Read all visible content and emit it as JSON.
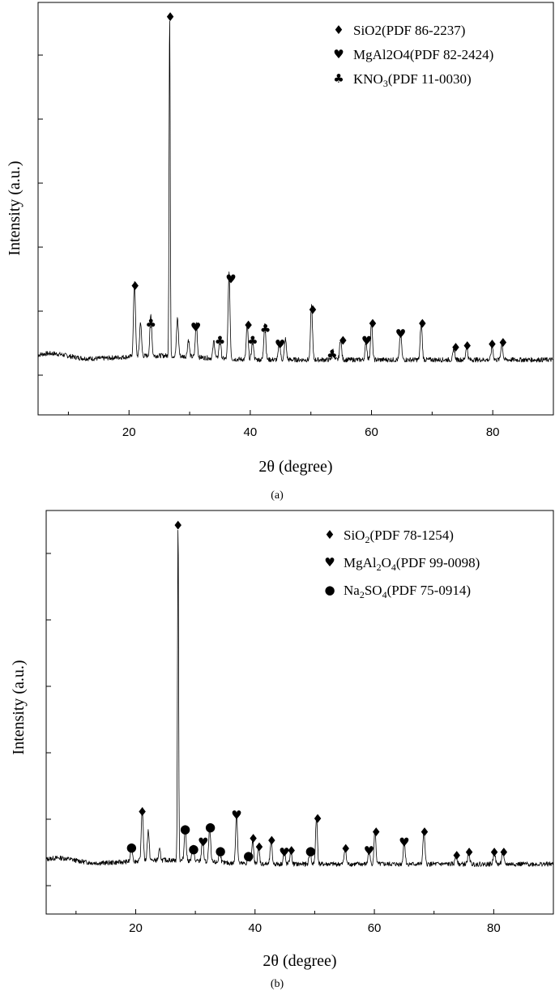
{
  "chart_data": [
    {
      "type": "line",
      "panel": "a",
      "xlabel": "2θ (degree)",
      "ylabel": "Intensity (a.u.)",
      "xlim": [
        5,
        90
      ],
      "x_ticks": [
        20,
        40,
        60,
        80
      ],
      "y_ticks_labeled": false,
      "legend_position": "top-right",
      "legend": [
        {
          "symbol": "diamond",
          "text": "SiO2(PDF 86-2237)"
        },
        {
          "symbol": "heart",
          "text": "MgAl2O4(PDF 82-2424)"
        },
        {
          "symbol": "club",
          "text": "KNO",
          "sub": "3",
          "after": "(PDF 11-0030)"
        }
      ],
      "baseline": 0.045,
      "peaks": [
        {
          "x": 20.9,
          "y": 0.22,
          "phase": "diamond"
        },
        {
          "x": 21.9,
          "y": 0.1
        },
        {
          "x": 23.6,
          "y": 0.12,
          "phase": "club"
        },
        {
          "x": 26.7,
          "y": 1.0,
          "phase": "diamond"
        },
        {
          "x": 28.0,
          "y": 0.11
        },
        {
          "x": 29.8,
          "y": 0.05
        },
        {
          "x": 31.1,
          "y": 0.1,
          "phase": "heart"
        },
        {
          "x": 34.0,
          "y": 0.05
        },
        {
          "x": 35.0,
          "y": 0.06,
          "phase": "club"
        },
        {
          "x": 36.5,
          "y": 0.25,
          "phase": "heart"
        },
        {
          "x": 39.5,
          "y": 0.1,
          "phase": "diamond"
        },
        {
          "x": 40.4,
          "y": 0.06,
          "phase": "club"
        },
        {
          "x": 42.4,
          "y": 0.11,
          "phase": "club"
        },
        {
          "x": 44.8,
          "y": 0.05,
          "phase": "heart"
        },
        {
          "x": 45.8,
          "y": 0.06
        },
        {
          "x": 50.1,
          "y": 0.16,
          "phase": "diamond"
        },
        {
          "x": 53.6,
          "y": 0.03,
          "phase": "club"
        },
        {
          "x": 54.9,
          "y": 0.06,
          "phase": "diamond"
        },
        {
          "x": 59.1,
          "y": 0.05,
          "phase": "heart"
        },
        {
          "x": 60.0,
          "y": 0.11,
          "phase": "diamond"
        },
        {
          "x": 64.8,
          "y": 0.08,
          "phase": "heart"
        },
        {
          "x": 68.2,
          "y": 0.11,
          "phase": "diamond"
        },
        {
          "x": 73.6,
          "y": 0.03,
          "phase": "diamond"
        },
        {
          "x": 75.7,
          "y": 0.04,
          "phase": "diamond"
        },
        {
          "x": 79.9,
          "y": 0.04,
          "phase": "diamond"
        },
        {
          "x": 81.5,
          "y": 0.05,
          "phase": "diamond"
        }
      ],
      "markers": [
        {
          "x": 21.0,
          "y": 0.26,
          "phase": "diamond"
        },
        {
          "x": 23.6,
          "y": 0.15,
          "phase": "club"
        },
        {
          "x": 26.8,
          "y": 1.045,
          "phase": "diamond"
        },
        {
          "x": 31.0,
          "y": 0.14,
          "phase": "heart"
        },
        {
          "x": 35.0,
          "y": 0.1,
          "phase": "club"
        },
        {
          "x": 36.8,
          "y": 0.28,
          "phase": "heart"
        },
        {
          "x": 39.7,
          "y": 0.145,
          "phase": "diamond"
        },
        {
          "x": 40.4,
          "y": 0.1,
          "phase": "club"
        },
        {
          "x": 42.5,
          "y": 0.135,
          "phase": "club"
        },
        {
          "x": 44.9,
          "y": 0.09,
          "phase": "heart"
        },
        {
          "x": 50.3,
          "y": 0.19,
          "phase": "diamond"
        },
        {
          "x": 53.5,
          "y": 0.06,
          "phase": "club"
        },
        {
          "x": 55.3,
          "y": 0.1,
          "phase": "diamond"
        },
        {
          "x": 59.2,
          "y": 0.1,
          "phase": "heart"
        },
        {
          "x": 60.2,
          "y": 0.15,
          "phase": "diamond"
        },
        {
          "x": 64.8,
          "y": 0.12,
          "phase": "heart"
        },
        {
          "x": 68.4,
          "y": 0.15,
          "phase": "diamond"
        },
        {
          "x": 73.9,
          "y": 0.08,
          "phase": "diamond"
        },
        {
          "x": 75.8,
          "y": 0.085,
          "phase": "diamond"
        },
        {
          "x": 79.9,
          "y": 0.09,
          "phase": "diamond"
        },
        {
          "x": 81.7,
          "y": 0.095,
          "phase": "diamond"
        }
      ],
      "panel_label": "(a)"
    },
    {
      "type": "line",
      "panel": "b",
      "xlabel": "2θ (degree)",
      "ylabel": "Intensity (a.u.)",
      "xlim": [
        5,
        90
      ],
      "x_ticks": [
        20,
        40,
        60,
        80
      ],
      "y_ticks_labeled": false,
      "legend_position": "top-right",
      "legend": [
        {
          "symbol": "diamond",
          "text": "SiO",
          "sub": "2",
          "after": "(PDF 78-1254)"
        },
        {
          "symbol": "heart",
          "text": "MgAl",
          "sub": "2",
          "text2": "O",
          "sub2": "4",
          "after": "(PDF 99-0098)"
        },
        {
          "symbol": "dot",
          "text": "Na",
          "sub": "2",
          "text2": "SO",
          "sub2": "4",
          "after": "(PDF 75-0914)"
        }
      ],
      "baseline": 0.035,
      "peaks": [
        {
          "x": 19.3,
          "y": 0.05,
          "phase": "dot"
        },
        {
          "x": 21.1,
          "y": 0.16,
          "phase": "diamond"
        },
        {
          "x": 22.1,
          "y": 0.09
        },
        {
          "x": 24.0,
          "y": 0.03
        },
        {
          "x": 27.1,
          "y": 1.0,
          "phase": "diamond"
        },
        {
          "x": 28.3,
          "y": 0.1,
          "phase": "dot"
        },
        {
          "x": 29.6,
          "y": 0.05,
          "phase": "dot"
        },
        {
          "x": 31.2,
          "y": 0.07,
          "phase": "heart"
        },
        {
          "x": 32.4,
          "y": 0.1,
          "phase": "dot"
        },
        {
          "x": 34.1,
          "y": 0.04,
          "phase": "dot"
        },
        {
          "x": 36.9,
          "y": 0.15,
          "phase": "heart"
        },
        {
          "x": 38.9,
          "y": 0.03,
          "phase": "dot"
        },
        {
          "x": 39.6,
          "y": 0.07,
          "phase": "diamond"
        },
        {
          "x": 40.6,
          "y": 0.05,
          "phase": "diamond"
        },
        {
          "x": 42.7,
          "y": 0.07,
          "phase": "diamond"
        },
        {
          "x": 44.9,
          "y": 0.04,
          "phase": "heart"
        },
        {
          "x": 46.0,
          "y": 0.04,
          "phase": "diamond"
        },
        {
          "x": 49.2,
          "y": 0.04,
          "phase": "dot"
        },
        {
          "x": 50.3,
          "y": 0.14,
          "phase": "diamond"
        },
        {
          "x": 55.1,
          "y": 0.05,
          "phase": "diamond"
        },
        {
          "x": 59.1,
          "y": 0.04,
          "phase": "heart"
        },
        {
          "x": 60.1,
          "y": 0.1,
          "phase": "diamond"
        },
        {
          "x": 65.0,
          "y": 0.07,
          "phase": "heart"
        },
        {
          "x": 68.3,
          "y": 0.1,
          "phase": "diamond"
        },
        {
          "x": 73.7,
          "y": 0.03,
          "phase": "diamond"
        },
        {
          "x": 75.8,
          "y": 0.04,
          "phase": "diamond"
        },
        {
          "x": 80.1,
          "y": 0.04,
          "phase": "diamond"
        },
        {
          "x": 81.5,
          "y": 0.04,
          "phase": "diamond"
        }
      ],
      "markers": [
        {
          "x": 19.3,
          "y": 0.085,
          "phase": "dot"
        },
        {
          "x": 21.1,
          "y": 0.19,
          "phase": "diamond"
        },
        {
          "x": 27.1,
          "y": 1.04,
          "phase": "diamond"
        },
        {
          "x": 28.3,
          "y": 0.14,
          "phase": "dot"
        },
        {
          "x": 29.7,
          "y": 0.08,
          "phase": "dot"
        },
        {
          "x": 31.3,
          "y": 0.1,
          "phase": "heart"
        },
        {
          "x": 32.5,
          "y": 0.145,
          "phase": "dot"
        },
        {
          "x": 34.2,
          "y": 0.075,
          "phase": "dot"
        },
        {
          "x": 36.9,
          "y": 0.18,
          "phase": "heart"
        },
        {
          "x": 38.9,
          "y": 0.06,
          "phase": "dot"
        },
        {
          "x": 39.7,
          "y": 0.11,
          "phase": "diamond"
        },
        {
          "x": 40.7,
          "y": 0.085,
          "phase": "diamond"
        },
        {
          "x": 42.8,
          "y": 0.105,
          "phase": "diamond"
        },
        {
          "x": 44.9,
          "y": 0.07,
          "phase": "heart"
        },
        {
          "x": 46.1,
          "y": 0.075,
          "phase": "diamond"
        },
        {
          "x": 49.3,
          "y": 0.075,
          "phase": "dot"
        },
        {
          "x": 50.5,
          "y": 0.17,
          "phase": "diamond"
        },
        {
          "x": 55.2,
          "y": 0.08,
          "phase": "diamond"
        },
        {
          "x": 59.1,
          "y": 0.075,
          "phase": "heart"
        },
        {
          "x": 60.3,
          "y": 0.13,
          "phase": "diamond"
        },
        {
          "x": 65.0,
          "y": 0.1,
          "phase": "heart"
        },
        {
          "x": 68.4,
          "y": 0.13,
          "phase": "diamond"
        },
        {
          "x": 73.8,
          "y": 0.06,
          "phase": "diamond"
        },
        {
          "x": 75.9,
          "y": 0.07,
          "phase": "diamond"
        },
        {
          "x": 80.1,
          "y": 0.07,
          "phase": "diamond"
        },
        {
          "x": 81.7,
          "y": 0.07,
          "phase": "diamond"
        }
      ],
      "panel_label": "(b)"
    }
  ],
  "symbols": {
    "diamond": "♦",
    "heart": "♥",
    "club": "♣",
    "dot": "●"
  }
}
